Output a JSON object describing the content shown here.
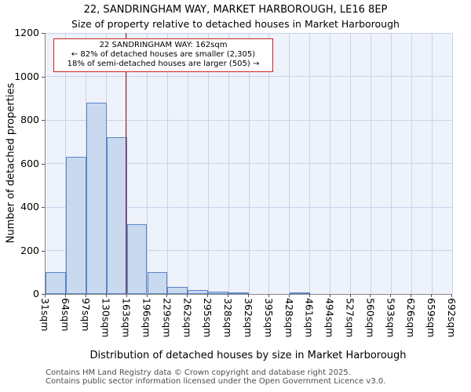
{
  "title": {
    "line1": "22, SANDRINGHAM WAY, MARKET HARBOROUGH, LE16 8EP",
    "line2": "Size of property relative to detached houses in Market Harborough"
  },
  "annotation": {
    "line1": "22 SANDRINGHAM WAY: 162sqm",
    "line2": "← 82% of detached houses are smaller (2,305)",
    "line3": "18% of semi-detached houses are larger (505) →"
  },
  "footer": {
    "line1": "Contains HM Land Registry data © Crown copyright and database right 2025.",
    "line2": "Contains public sector information licensed under the Open Government Licence v3.0."
  },
  "chart_data": {
    "type": "bar",
    "title": "22, SANDRINGHAM WAY, MARKET HARBOROUGH, LE16 8EP — Size of property relative to detached houses in Market Harborough",
    "xlabel": "Distribution of detached houses by size in Market Harborough",
    "ylabel": "Number of detached properties",
    "ylim": [
      0,
      1200
    ],
    "ytick_step": 200,
    "grid": true,
    "legend_position": "none",
    "categories": [
      "31sqm",
      "64sqm",
      "97sqm",
      "130sqm",
      "163sqm",
      "196sqm",
      "229sqm",
      "262sqm",
      "295sqm",
      "328sqm",
      "362sqm",
      "395sqm",
      "428sqm",
      "461sqm",
      "494sqm",
      "527sqm",
      "560sqm",
      "593sqm",
      "626sqm",
      "659sqm",
      "692sqm"
    ],
    "values": [
      100,
      630,
      880,
      720,
      320,
      100,
      32,
      18,
      10,
      6,
      0,
      0,
      6,
      0,
      0,
      0,
      0,
      0,
      0,
      0
    ],
    "marker": {
      "sqm": 162,
      "label": "162sqm",
      "smaller_pct": 82,
      "smaller_count": "2,305",
      "larger_pct": 18,
      "larger_count": "505"
    },
    "colors": {
      "bar_fill": "#c9d9f0",
      "bar_border": "#5b84c4",
      "marker_line": "#9e1a1a",
      "annotation_border": "#cc2222",
      "grid": "#c9d2e8",
      "plot_bg": "#eef2fb"
    }
  }
}
